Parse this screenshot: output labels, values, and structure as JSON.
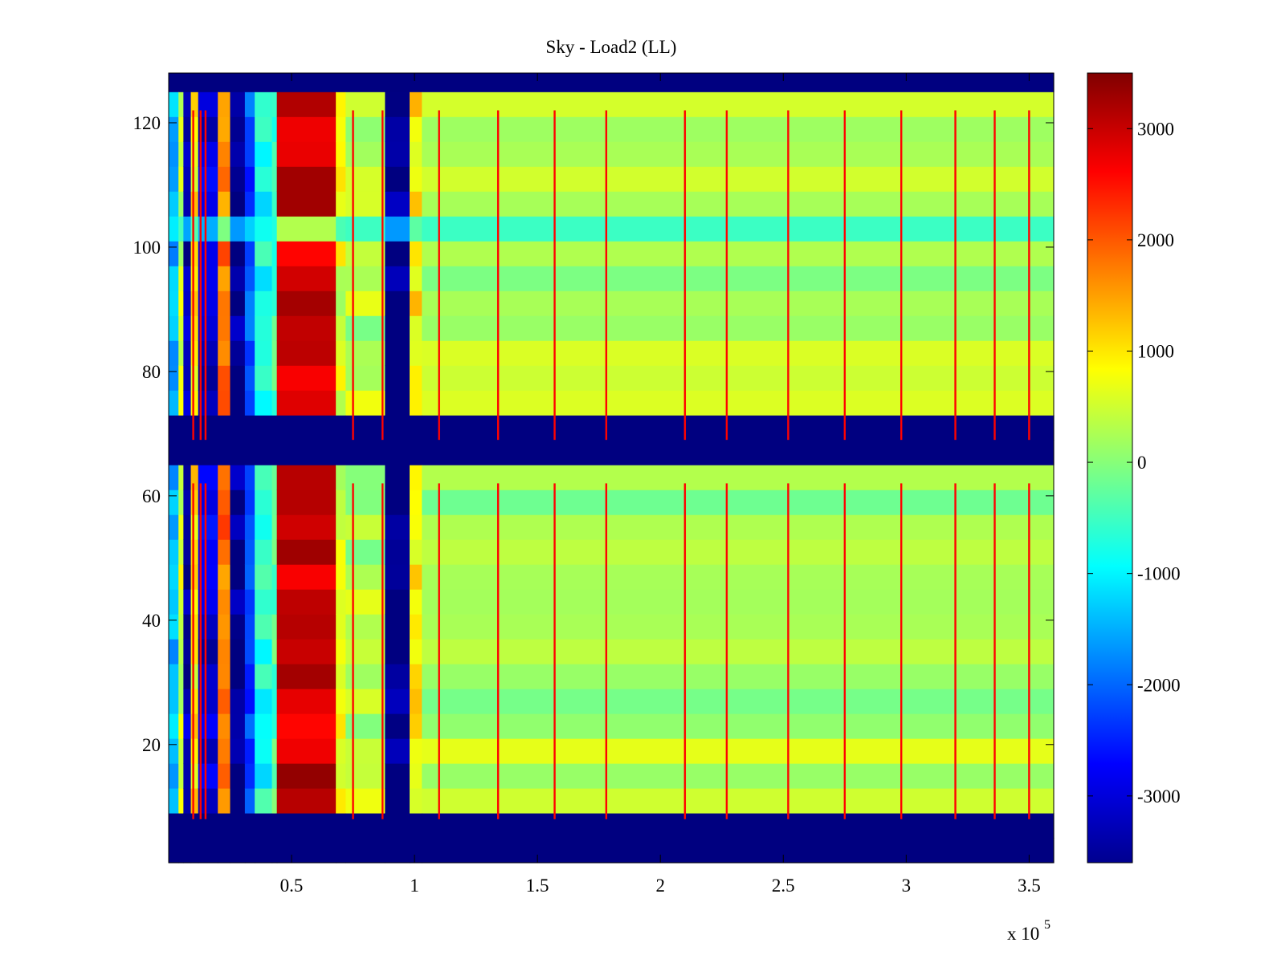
{
  "chart_data": {
    "type": "heatmap",
    "title": "Sky - Load2 (LL)",
    "xlabel": "",
    "ylabel": "",
    "x_multiplier_label": "x 10",
    "x_multiplier_exponent": "5",
    "xlim": [
      0,
      360000
    ],
    "ylim": [
      1,
      128
    ],
    "x_ticks": [
      50000,
      100000,
      150000,
      200000,
      250000,
      300000,
      350000
    ],
    "x_tick_labels": [
      "0.5",
      "1",
      "1.5",
      "2",
      "2.5",
      "3",
      "3.5"
    ],
    "y_ticks": [
      20,
      40,
      60,
      80,
      100,
      120
    ],
    "y_tick_labels": [
      "20",
      "40",
      "60",
      "80",
      "100",
      "120"
    ],
    "colorbar": {
      "colormap": "jet",
      "clim": [
        -3600,
        3500
      ],
      "ticks": [
        3000,
        2000,
        1000,
        0,
        -1000,
        -2000,
        -3000
      ],
      "tick_labels": [
        "3000",
        "2000",
        "1000",
        "0",
        "-1000",
        "-2000",
        "-3000"
      ]
    },
    "masked_rows": [
      [
        1,
        8
      ],
      [
        62,
        69
      ],
      [
        122,
        128
      ]
    ],
    "masked_value": -3600,
    "column_bands": [
      {
        "x": [
          0,
          4000
        ],
        "value": -1500
      },
      {
        "x": [
          4000,
          6000
        ],
        "value": 500
      },
      {
        "x": [
          6000,
          9000
        ],
        "value": -3200
      },
      {
        "x": [
          9000,
          12000
        ],
        "value": 900
      },
      {
        "x": [
          12000,
          20000
        ],
        "value": -3000
      },
      {
        "x": [
          20000,
          25000
        ],
        "value": 1800
      },
      {
        "x": [
          25000,
          31000
        ],
        "value": -3500
      },
      {
        "x": [
          31000,
          35000
        ],
        "value": -2200
      },
      {
        "x": [
          35000,
          42000
        ],
        "value": -800
      },
      {
        "x": [
          42000,
          44000
        ],
        "value": -400
      },
      {
        "x": [
          44000,
          68000
        ],
        "value": 3000
      },
      {
        "x": [
          68000,
          72000
        ],
        "value": 600
      },
      {
        "x": [
          72000,
          88000
        ],
        "value": 300
      },
      {
        "x": [
          88000,
          98000
        ],
        "value": -3500
      },
      {
        "x": [
          98000,
          103000
        ],
        "value": 1000
      },
      {
        "x": [
          103000,
          360000
        ],
        "value": 250
      }
    ],
    "vertical_streaks_x": [
      10000,
      13000,
      15000,
      75000,
      87000,
      110000,
      134000,
      157000,
      178000,
      210000,
      227000,
      252000,
      275000,
      298000,
      320000,
      336000,
      350000
    ],
    "horizontal_stripe_y": 100
  }
}
